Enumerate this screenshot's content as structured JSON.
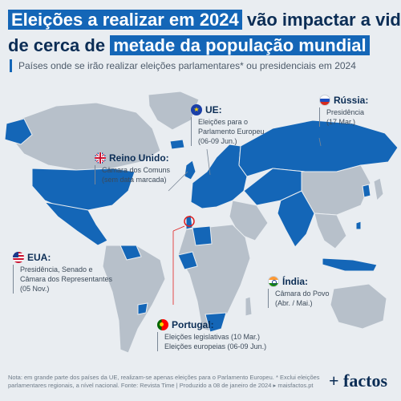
{
  "title": {
    "part1": "Eleições a realizar em 2024",
    "part2": "vão impactar a vida",
    "part3": "de cerca de",
    "part4": "metade da população mundial"
  },
  "subtitle": "Países onde se irão realizar eleições parlamentares* ou presidenciais em 2024",
  "colors": {
    "highlight": "#1466b7",
    "land_election": "#1466b7",
    "land_other": "#b7c0ca",
    "background": "#e9edf1"
  },
  "callouts": {
    "russia": {
      "flag_icon": "russia-flag-icon",
      "name": "Rússia:",
      "items": [
        "Presidência",
        "(17 Mar.)"
      ]
    },
    "eu": {
      "flag_icon": "eu-flag-icon",
      "name": "UE:",
      "items": [
        "Eleições para o",
        "Parlamento Europeu",
        "(06-09 Jun.)"
      ]
    },
    "uk": {
      "flag_icon": "uk-flag-icon",
      "name": "Reino Unido:",
      "items": [
        "Câmara dos Comuns",
        "(sem data marcada)"
      ]
    },
    "usa": {
      "flag_icon": "usa-flag-icon",
      "name": "EUA:",
      "items": [
        "Presidência, Senado e",
        "Câmara dos Representantes",
        "(05 Nov.)"
      ]
    },
    "india": {
      "flag_icon": "india-flag-icon",
      "name": "Índia:",
      "items": [
        "Câmara do Povo",
        "(Abr. / Mai.)"
      ]
    },
    "portugal": {
      "flag_icon": "portugal-flag-icon",
      "name": "Portugal:",
      "items": [
        "Eleições legislativas (10 Mar.)",
        "Eleições europeias (06-09 Jun.)"
      ]
    }
  },
  "footer": "Nota: em grande parte dos países da UE, realizam-se apenas eleições para o Parlamento Europeu. * Exclui eleições parlamentares regionais, a nível nacional. Fonte: Revista Time | Produzido a 08 de janeiro de 2024 ▸ maisfactos.pt",
  "logo": "+ factos"
}
